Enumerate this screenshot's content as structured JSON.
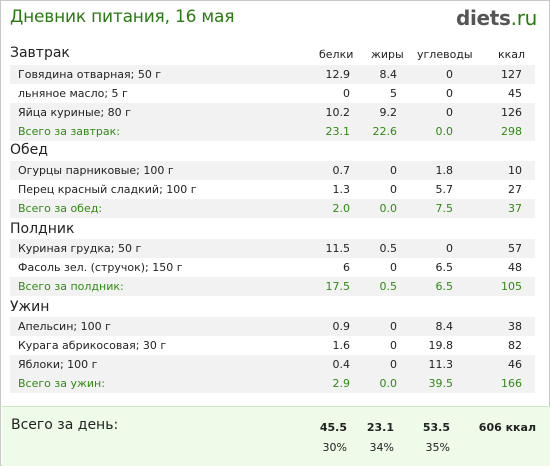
{
  "header": {
    "title": "Дневник питания, 16 мая",
    "logo_main": "diets",
    "logo_tld": ".ru"
  },
  "columns": {
    "protein": "белки",
    "fat": "жиры",
    "carbs": "углеводы",
    "kcal": "ккал"
  },
  "meals": [
    {
      "title": "Завтрак",
      "items": [
        {
          "name": "Говядина отварная; 50 г",
          "protein": "12.9",
          "fat": "8.4",
          "carbs": "0",
          "kcal": "127"
        },
        {
          "name": "льняное масло; 5 г",
          "protein": "0",
          "fat": "5",
          "carbs": "0",
          "kcal": "45"
        },
        {
          "name": "Яйца куриные; 80 г",
          "protein": "10.2",
          "fat": "9.2",
          "carbs": "0",
          "kcal": "126"
        }
      ],
      "total": {
        "name": "Всего за завтрак:",
        "protein": "23.1",
        "fat": "22.6",
        "carbs": "0.0",
        "kcal": "298"
      }
    },
    {
      "title": "Обед",
      "items": [
        {
          "name": "Огурцы парниковые; 100 г",
          "protein": "0.7",
          "fat": "0",
          "carbs": "1.8",
          "kcal": "10"
        },
        {
          "name": "Перец красный сладкий; 100 г",
          "protein": "1.3",
          "fat": "0",
          "carbs": "5.7",
          "kcal": "27"
        }
      ],
      "total": {
        "name": "Всего за обед:",
        "protein": "2.0",
        "fat": "0.0",
        "carbs": "7.5",
        "kcal": "37"
      }
    },
    {
      "title": "Полдник",
      "items": [
        {
          "name": "Куриная грудка; 50 г",
          "protein": "11.5",
          "fat": "0.5",
          "carbs": "0",
          "kcal": "57"
        },
        {
          "name": "Фасоль зел. (стручок); 150 г",
          "protein": "6",
          "fat": "0",
          "carbs": "6.5",
          "kcal": "48"
        }
      ],
      "total": {
        "name": "Всего за полдник:",
        "protein": "17.5",
        "fat": "0.5",
        "carbs": "6.5",
        "kcal": "105"
      }
    },
    {
      "title": "Ужин",
      "items": [
        {
          "name": "Апельсин; 100 г",
          "protein": "0.9",
          "fat": "0",
          "carbs": "8.4",
          "kcal": "38"
        },
        {
          "name": "Курага абрикосовая; 30 г",
          "protein": "1.6",
          "fat": "0",
          "carbs": "19.8",
          "kcal": "82"
        },
        {
          "name": "Яблоки; 100 г",
          "protein": "0.4",
          "fat": "0",
          "carbs": "11.3",
          "kcal": "46"
        }
      ],
      "total": {
        "name": "Всего за ужин:",
        "protein": "2.9",
        "fat": "0.0",
        "carbs": "39.5",
        "kcal": "166"
      }
    }
  ],
  "day_total": {
    "label": "Всего за день:",
    "protein": "45.5",
    "fat": "23.1",
    "carbs": "53.5",
    "kcal": "606 ккал",
    "protein_pct": "30%",
    "fat_pct": "34%",
    "carbs_pct": "35%"
  },
  "colors": {
    "accent": "#2a7a12",
    "total_text": "#2f8b12",
    "row_alt": "#f2f2f2",
    "day_bg": "#eefbe9"
  }
}
